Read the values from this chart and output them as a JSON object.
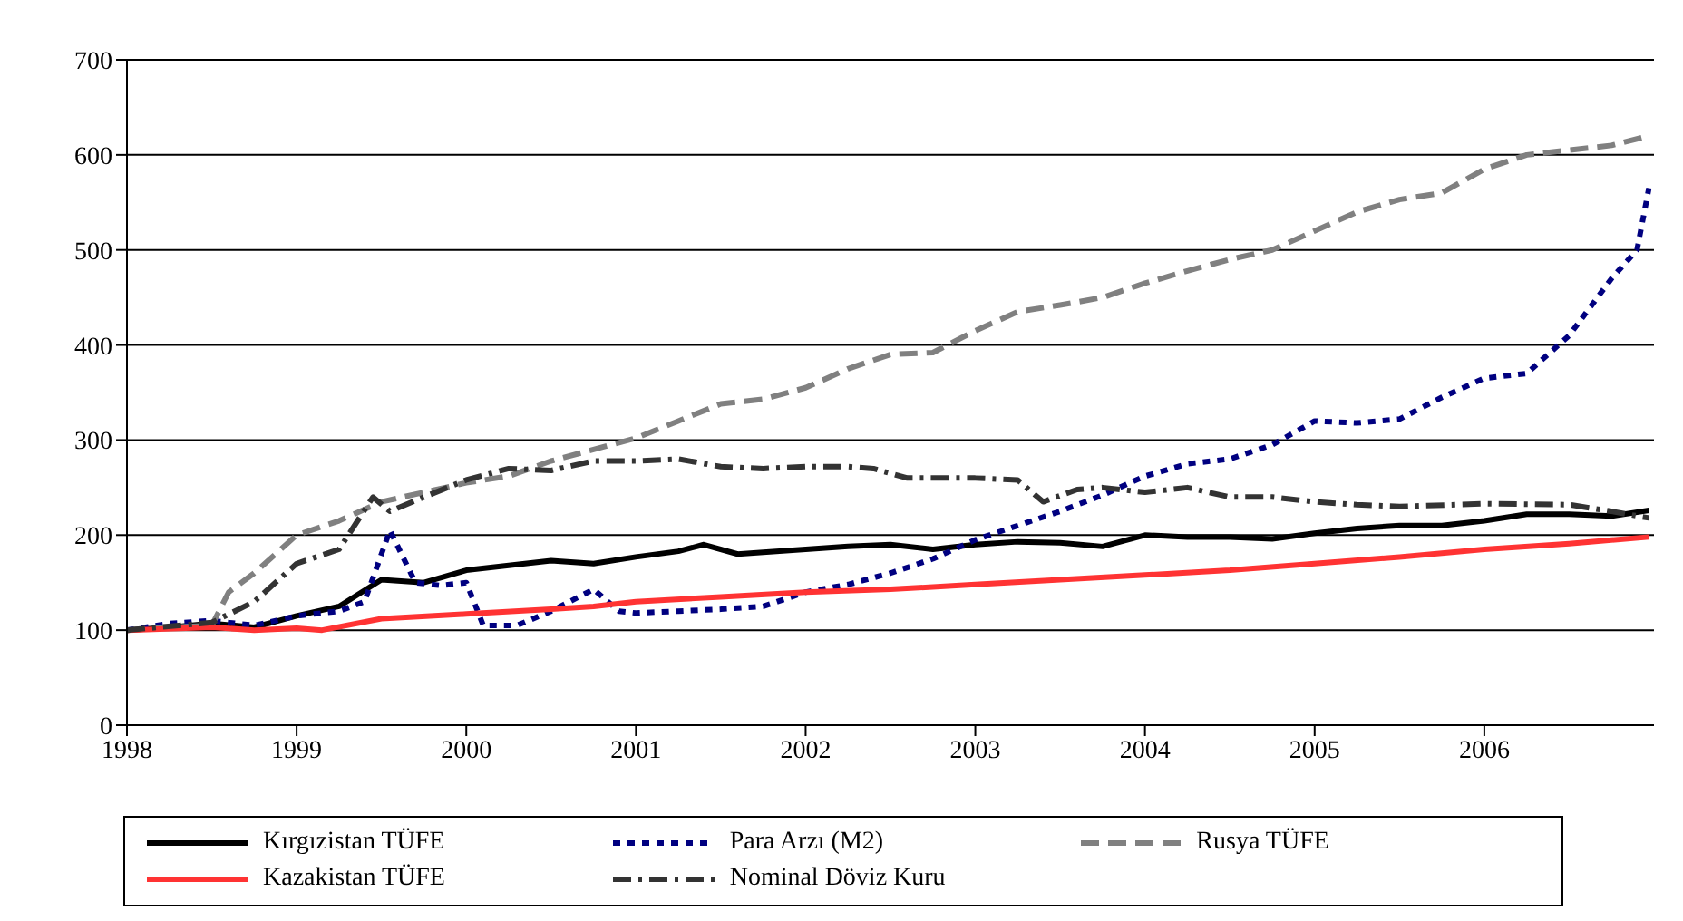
{
  "chart_data": {
    "type": "line",
    "xlim": [
      1998,
      2007
    ],
    "xticks": [
      1998,
      1999,
      2000,
      2001,
      2002,
      2003,
      2004,
      2005,
      2006
    ],
    "ylim": [
      0,
      700
    ],
    "yticks": [
      0,
      100,
      200,
      300,
      400,
      500,
      600,
      700
    ],
    "grid": "y",
    "legend": "bottom",
    "marker": "none",
    "series": [
      {
        "name": "Kırgızistan TÜFE",
        "color": "#000000",
        "line_style": "solid",
        "x": [
          1998,
          1998.25,
          1998.5,
          1998.75,
          1999,
          1999.25,
          1999.5,
          1999.75,
          2000,
          2000.25,
          2000.5,
          2000.75,
          2001,
          2001.25,
          2001.4,
          2001.6,
          2001.75,
          2002,
          2002.25,
          2002.5,
          2002.75,
          2003,
          2003.25,
          2003.5,
          2003.75,
          2004,
          2004.25,
          2004.5,
          2004.75,
          2005,
          2005.25,
          2005.5,
          2005.75,
          2006,
          2006.25,
          2006.5,
          2006.75,
          2006.97
        ],
        "values": [
          100,
          103,
          107,
          103,
          115,
          125,
          153,
          150,
          163,
          168,
          173,
          170,
          177,
          183,
          190,
          180,
          182,
          185,
          188,
          190,
          185,
          190,
          193,
          192,
          188,
          200,
          198,
          198,
          196,
          202,
          207,
          210,
          210,
          215,
          222,
          222,
          220,
          226
        ]
      },
      {
        "name": "Para Arzı (M2)",
        "color": "#000080",
        "line_style": "dotted",
        "x": [
          1998,
          1998.25,
          1998.5,
          1998.75,
          1999,
          1999.25,
          1999.4,
          1999.55,
          1999.7,
          1999.85,
          2000,
          2000.1,
          2000.3,
          2000.5,
          2000.75,
          2000.9,
          2001,
          2001.25,
          2001.5,
          2001.75,
          2002,
          2002.25,
          2002.5,
          2002.75,
          2003,
          2003.25,
          2003.5,
          2003.75,
          2004,
          2004.25,
          2004.5,
          2004.75,
          2005,
          2005.25,
          2005.5,
          2005.75,
          2006,
          2006.25,
          2006.5,
          2006.75,
          2006.9,
          2006.97
        ],
        "values": [
          100,
          107,
          110,
          105,
          115,
          120,
          130,
          205,
          150,
          147,
          150,
          105,
          105,
          120,
          143,
          120,
          118,
          120,
          122,
          125,
          140,
          148,
          160,
          175,
          195,
          210,
          225,
          242,
          262,
          275,
          280,
          295,
          320,
          318,
          322,
          345,
          365,
          370,
          410,
          470,
          500,
          565
        ]
      },
      {
        "name": "Rusya TÜFE",
        "color": "#808080",
        "line_style": "dashed",
        "x": [
          1998,
          1998.25,
          1998.5,
          1998.6,
          1998.75,
          1999,
          1999.25,
          1999.5,
          1999.75,
          2000,
          2000.25,
          2000.5,
          2000.75,
          2001,
          2001.25,
          2001.5,
          2001.75,
          2002,
          2002.25,
          2002.5,
          2002.75,
          2003,
          2003.25,
          2003.5,
          2003.75,
          2004,
          2004.25,
          2004.5,
          2004.75,
          2005,
          2005.25,
          2005.5,
          2005.75,
          2006,
          2006.25,
          2006.5,
          2006.75,
          2006.97
        ],
        "values": [
          100,
          103,
          105,
          140,
          160,
          200,
          215,
          235,
          245,
          255,
          262,
          278,
          290,
          302,
          320,
          338,
          343,
          355,
          375,
          390,
          392,
          415,
          435,
          442,
          450,
          465,
          478,
          490,
          500,
          520,
          540,
          553,
          560,
          585,
          600,
          605,
          610,
          620
        ]
      },
      {
        "name": "Kazakistan TÜFE",
        "color": "#ff3333",
        "line_style": "solid",
        "x": [
          1998,
          1998.5,
          1998.75,
          1999,
          1999.15,
          1999.5,
          2000,
          2000.5,
          2000.75,
          2001,
          2001.5,
          2002,
          2002.5,
          2003,
          2003.5,
          2004,
          2004.5,
          2005,
          2005.5,
          2006,
          2006.5,
          2006.97
        ],
        "values": [
          100,
          103,
          100,
          102,
          100,
          112,
          117,
          122,
          125,
          130,
          135,
          140,
          143,
          148,
          153,
          158,
          163,
          170,
          177,
          185,
          191,
          198
        ]
      },
      {
        "name": "Nominal Döviz Kuru",
        "color": "#333333",
        "line_style": "dashdot",
        "x": [
          1998,
          1998.5,
          1998.75,
          1999,
          1999.25,
          1999.45,
          1999.55,
          1999.75,
          2000,
          2000.25,
          2000.5,
          2000.75,
          2001,
          2001.25,
          2001.5,
          2001.75,
          2002,
          2002.25,
          2002.4,
          2002.6,
          2003,
          2003.25,
          2003.4,
          2003.6,
          2003.75,
          2004,
          2004.25,
          2004.5,
          2004.75,
          2005,
          2005.25,
          2005.5,
          2006,
          2006.5,
          2006.75,
          2006.97
        ],
        "values": [
          100,
          108,
          130,
          170,
          185,
          240,
          225,
          240,
          258,
          270,
          268,
          278,
          278,
          280,
          272,
          270,
          272,
          272,
          270,
          260,
          260,
          258,
          235,
          248,
          250,
          245,
          250,
          240,
          240,
          235,
          232,
          230,
          233,
          232,
          225,
          218
        ]
      }
    ]
  }
}
